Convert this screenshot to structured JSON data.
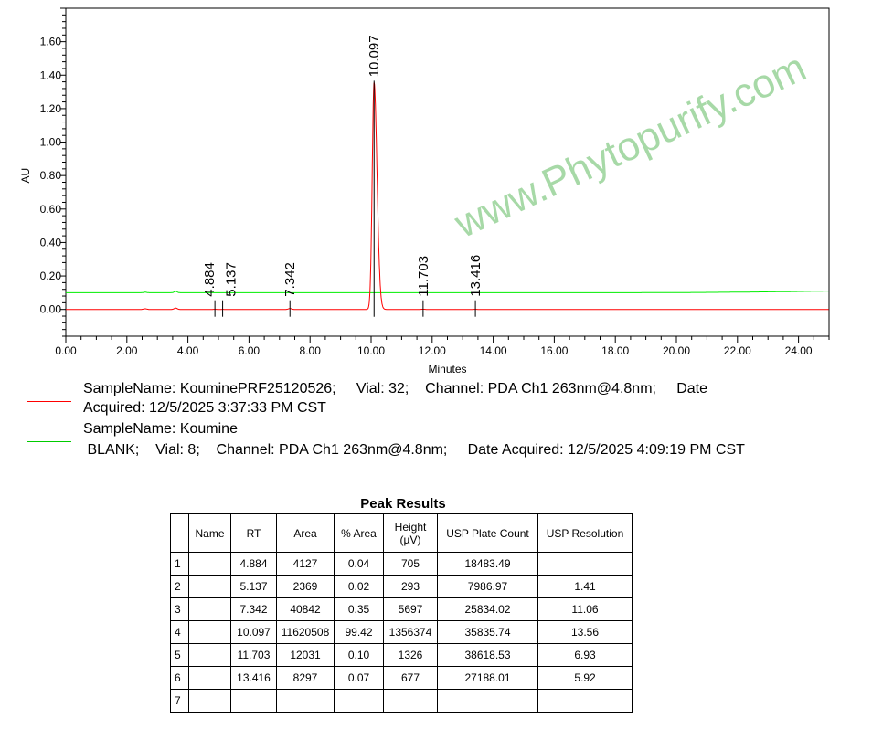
{
  "chart_data": {
    "type": "line",
    "xlabel": "Minutes",
    "ylabel": "AU",
    "xlim": [
      0,
      25
    ],
    "ylim": [
      -0.16,
      1.8
    ],
    "x_ticks": [
      "0.00",
      "2.00",
      "4.00",
      "6.00",
      "8.00",
      "10.00",
      "12.00",
      "14.00",
      "16.00",
      "18.00",
      "20.00",
      "22.00",
      "24.00"
    ],
    "y_ticks": [
      "0.00",
      "0.20",
      "0.40",
      "0.60",
      "0.80",
      "1.00",
      "1.20",
      "1.40",
      "1.60"
    ],
    "series": [
      {
        "color": "#ff0000",
        "baseline": 0.0,
        "peaks": [
          {
            "rt": 2.6,
            "height": 0.004
          },
          {
            "rt": 3.6,
            "height": 0.008
          },
          {
            "rt": 4.884,
            "height": 0.0007
          },
          {
            "rt": 5.137,
            "height": 0.0003
          },
          {
            "rt": 7.342,
            "height": 0.0057
          },
          {
            "rt": 10.097,
            "height": 1.356
          },
          {
            "rt": 11.703,
            "height": 0.0013
          },
          {
            "rt": 13.416,
            "height": 0.0007
          }
        ]
      },
      {
        "color": "#00ee00",
        "baseline": 0.1,
        "baseline_end": 0.11,
        "peaks": [
          {
            "rt": 2.6,
            "height": 0.003
          },
          {
            "rt": 3.6,
            "height": 0.008
          }
        ]
      }
    ],
    "peak_labels": [
      "4.884",
      "5.137",
      "7.342",
      "10.097",
      "11.703",
      "13.416"
    ]
  },
  "legend": [
    {
      "color": "#ff0000",
      "line1": "SampleName: KouminePRF25120526;     Vial: 32;    Channel: PDA Ch1 263nm@4.8nm;     Date",
      "line2": "Acquired: 12/5/2025 3:37:33 PM CST"
    },
    {
      "color": "#00cc00",
      "line1": "SampleName: Koumine",
      "line2": " BLANK;    Vial: 8;    Channel: PDA Ch1 263nm@4.8nm;     Date Acquired: 12/5/2025 4:09:19 PM CST"
    }
  ],
  "watermark": "www.Phytopurify.com",
  "table": {
    "title": "Peak Results",
    "headers": [
      "",
      "Name",
      "RT",
      "Area",
      "% Area",
      "Height (µV)",
      "USP Plate Count",
      "USP Resolution"
    ],
    "rows": [
      [
        "1",
        "",
        "4.884",
        "4127",
        "0.04",
        "705",
        "18483.49",
        ""
      ],
      [
        "2",
        "",
        "5.137",
        "2369",
        "0.02",
        "293",
        "7986.97",
        "1.41"
      ],
      [
        "3",
        "",
        "7.342",
        "40842",
        "0.35",
        "5697",
        "25834.02",
        "11.06"
      ],
      [
        "4",
        "",
        "10.097",
        "11620508",
        "99.42",
        "1356374",
        "35835.74",
        "13.56"
      ],
      [
        "5",
        "",
        "11.703",
        "12031",
        "0.10",
        "1326",
        "38618.53",
        "6.93"
      ],
      [
        "6",
        "",
        "13.416",
        "8297",
        "0.07",
        "677",
        "27188.01",
        "5.92"
      ],
      [
        "7",
        "",
        "",
        "",
        "",
        "",
        "",
        ""
      ]
    ]
  }
}
